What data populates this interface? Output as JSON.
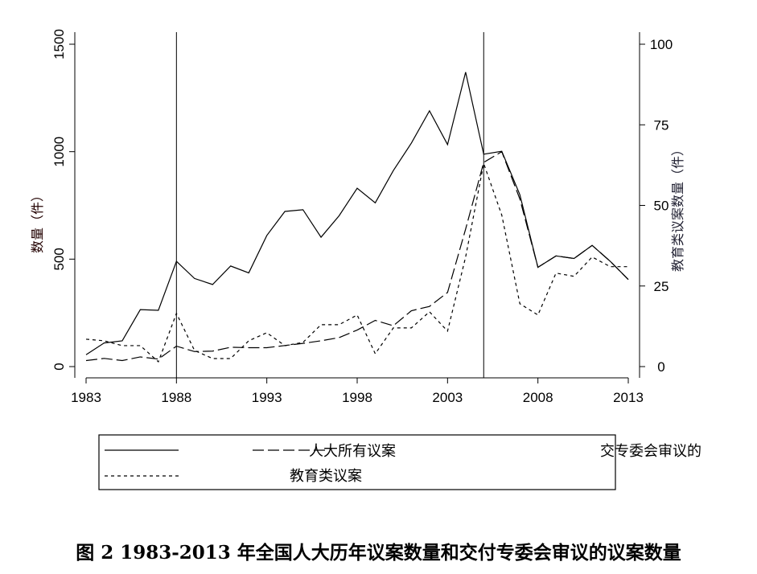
{
  "chart_data": {
    "type": "line",
    "title": "图 2 1983-2013 年全国人大历年议案数量和交付专委会审议的议案数量",
    "ylabel": "数量（件）",
    "y2label": "教育类议案数量（件）",
    "xlim": [
      1983,
      2013
    ],
    "ylim": [
      0,
      1500
    ],
    "y2lim": [
      0,
      100
    ],
    "xticks": [
      1983,
      1988,
      1993,
      1998,
      2003,
      2008,
      2013
    ],
    "yticks": [
      0,
      500,
      1000,
      1500
    ],
    "y2ticks": [
      0,
      25,
      50,
      75,
      100
    ],
    "vlines": [
      1988,
      2005
    ],
    "grid": false,
    "x": [
      1983,
      1984,
      1985,
      1986,
      1987,
      1988,
      1989,
      1990,
      1991,
      1992,
      1993,
      1994,
      1995,
      1996,
      1997,
      1998,
      1999,
      2000,
      2001,
      2002,
      2003,
      2004,
      2005,
      2006,
      2007,
      2008,
      2009,
      2010,
      2011,
      2012,
      2013
    ],
    "series": [
      {
        "name": "人大所有议案",
        "axis": "left",
        "style": "solid",
        "values": [
          55,
          110,
          120,
          265,
          262,
          490,
          410,
          382,
          468,
          436,
          610,
          722,
          730,
          602,
          702,
          830,
          762,
          912,
          1040,
          1190,
          1033,
          1370,
          988,
          1002,
          800,
          462,
          515,
          503,
          564,
          490,
          405
        ]
      },
      {
        "name": "交专委会审议的",
        "axis": "left",
        "style": "longdash",
        "values": [
          28,
          38,
          28,
          45,
          35,
          95,
          70,
          72,
          90,
          88,
          88,
          98,
          108,
          120,
          135,
          170,
          215,
          190,
          260,
          280,
          345,
          640,
          950,
          1000,
          780,
          462,
          515,
          503,
          564,
          490,
          405
        ]
      },
      {
        "name": "教育类议案",
        "axis": "right",
        "style": "dotted",
        "values": [
          8.5,
          8,
          6.5,
          6.5,
          1.5,
          16.5,
          5,
          2.5,
          2.5,
          8,
          10.5,
          6.5,
          7.5,
          13,
          13,
          16,
          4,
          12,
          12,
          17,
          11,
          34,
          63,
          47,
          19.5,
          16,
          29,
          28,
          34,
          31,
          31
        ]
      }
    ],
    "legend": {
      "placement": "bottom",
      "entries": [
        "人大所有议案",
        "交专委会审议的",
        "教育类议案"
      ]
    }
  }
}
